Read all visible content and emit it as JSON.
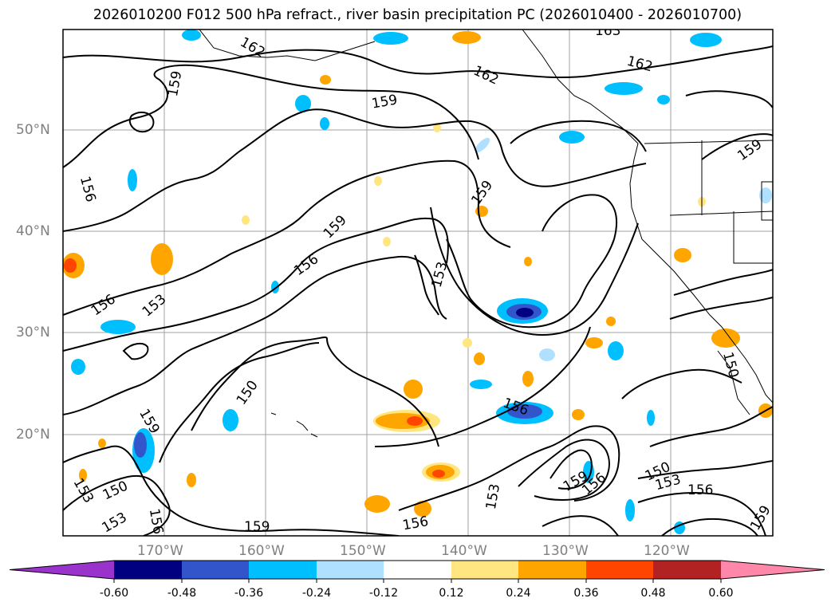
{
  "title": "2026010200 F012 500 hPa refract., river basin precipitation PC (2026010400 - 2026010700)",
  "lat_labels": [
    "50°N",
    "40°N",
    "30°N",
    "20°N"
  ],
  "lon_labels": [
    "170°W",
    "160°W",
    "150°W",
    "140°W",
    "130°W",
    "120°W"
  ],
  "contour_labels": [
    "163",
    "162",
    "162",
    "162",
    "159",
    "159",
    "159",
    "159",
    "159",
    "159",
    "159",
    "159",
    "159",
    "156",
    "156",
    "156",
    "156",
    "156",
    "156",
    "156",
    "156",
    "153",
    "153",
    "153",
    "153",
    "153",
    "153",
    "150",
    "150",
    "150",
    "150"
  ],
  "colorbar": {
    "ticks": [
      "-0.60",
      "-0.48",
      "-0.36",
      "-0.24",
      "-0.12",
      "0.12",
      "0.24",
      "0.36",
      "0.48",
      "0.60"
    ],
    "colors": [
      "#9933cc",
      "#000080",
      "#3355cc",
      "#00bfff",
      "#b0e0ff",
      "#ffffff",
      "#ffe680",
      "#ffa500",
      "#ff4500",
      "#b22222",
      "#ff88aa",
      "#ff88aa"
    ]
  }
}
